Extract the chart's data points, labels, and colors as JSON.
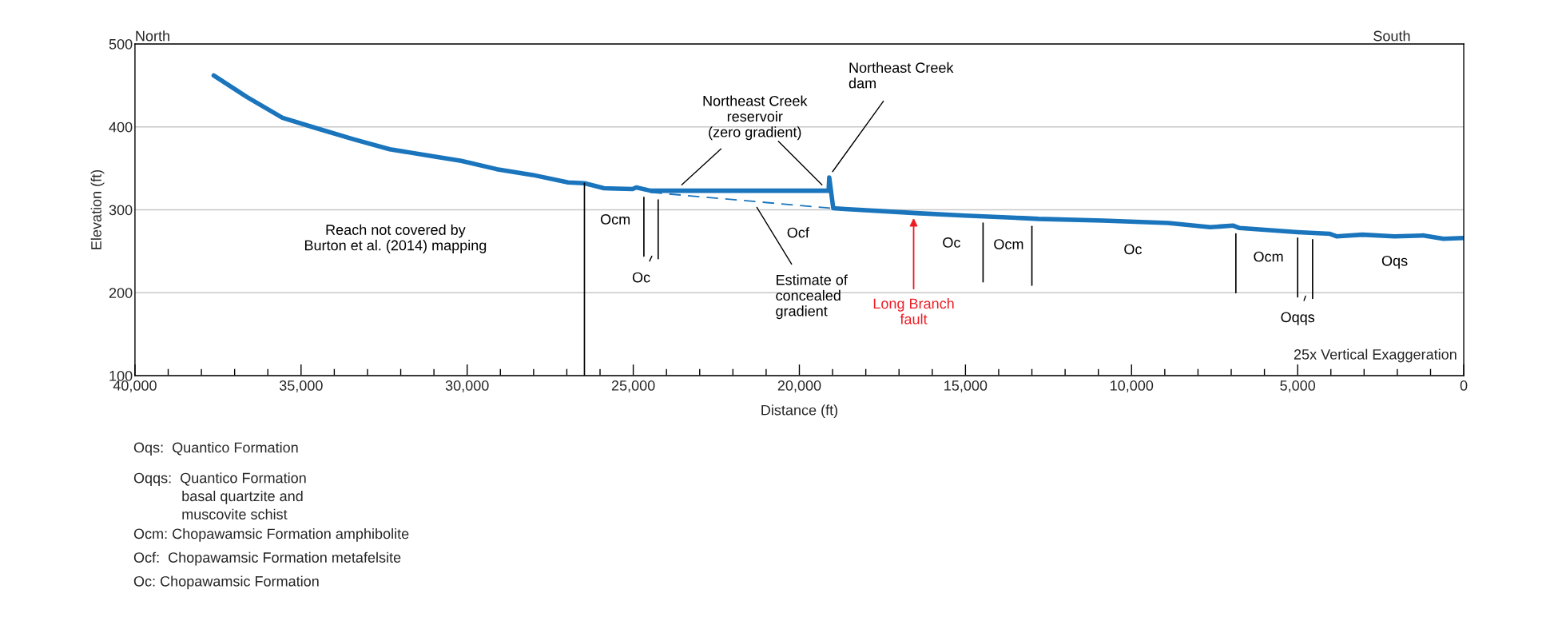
{
  "chart_data": {
    "type": "line",
    "xlabel": "Distance (ft)",
    "ylabel": "Elevation (ft)",
    "xlim": [
      40000,
      0
    ],
    "ylim": [
      100,
      500
    ],
    "xticks": [
      {
        "value": 40000,
        "label": "40,000"
      },
      {
        "value": 39000,
        "label": null
      },
      {
        "value": 38000,
        "label": null
      },
      {
        "value": 37000,
        "label": null
      },
      {
        "value": 36000,
        "label": null
      },
      {
        "value": 35000,
        "label": "35,000"
      },
      {
        "value": 34000,
        "label": null
      },
      {
        "value": 33000,
        "label": null
      },
      {
        "value": 32000,
        "label": null
      },
      {
        "value": 31000,
        "label": null
      },
      {
        "value": 30000,
        "label": "30,000"
      },
      {
        "value": 29000,
        "label": null
      },
      {
        "value": 28000,
        "label": null
      },
      {
        "value": 27000,
        "label": null
      },
      {
        "value": 26000,
        "label": null
      },
      {
        "value": 25000,
        "label": "25,000"
      },
      {
        "value": 24000,
        "label": null
      },
      {
        "value": 23000,
        "label": null
      },
      {
        "value": 22000,
        "label": null
      },
      {
        "value": 21000,
        "label": null
      },
      {
        "value": 20000,
        "label": "20,000"
      },
      {
        "value": 19000,
        "label": null
      },
      {
        "value": 18000,
        "label": null
      },
      {
        "value": 17000,
        "label": null
      },
      {
        "value": 16000,
        "label": null
      },
      {
        "value": 15000,
        "label": "15,000"
      },
      {
        "value": 14000,
        "label": null
      },
      {
        "value": 13000,
        "label": null
      },
      {
        "value": 12000,
        "label": null
      },
      {
        "value": 11000,
        "label": null
      },
      {
        "value": 10000,
        "label": "10,000"
      },
      {
        "value": 9000,
        "label": null
      },
      {
        "value": 8000,
        "label": null
      },
      {
        "value": 7000,
        "label": null
      },
      {
        "value": 6000,
        "label": null
      },
      {
        "value": 5000,
        "label": "5,000"
      },
      {
        "value": 4000,
        "label": null
      },
      {
        "value": 3000,
        "label": null
      },
      {
        "value": 2000,
        "label": null
      },
      {
        "value": 1000,
        "label": null
      },
      0
    ],
    "yticks": [
      100,
      200,
      300,
      400,
      500
    ],
    "grid": "y",
    "legend": false,
    "series": [
      {
        "color": "#1a75bc",
        "x": [
          37630,
          36630,
          35560,
          34590,
          33410,
          32330,
          31260,
          30180,
          29110,
          28030,
          26960,
          26470,
          25880,
          25020,
          24910,
          24480,
          19120,
          19100,
          18980,
          18640,
          16490,
          15010,
          13270,
          12800,
          10850,
          8900,
          7630,
          6950,
          6750,
          5000,
          4030,
          3830,
          3050,
          2080,
          1200,
          610,
          0
        ],
        "values": [
          462,
          436,
          411,
          399,
          385,
          373,
          366,
          359,
          349,
          342,
          333,
          332,
          326,
          325,
          327,
          323,
          323,
          339,
          302,
          301,
          296,
          293,
          290,
          289,
          287,
          284,
          279,
          281,
          278,
          273,
          271,
          268,
          270,
          268,
          269,
          265,
          266
        ]
      },
      {
        "color": "#1a75bc",
        "line_style": "dashed",
        "x": [
          24480,
          19070
        ],
        "values": [
          321,
          302
        ]
      },
      {
        "color": "#000000",
        "x": [
          26470,
          26470
        ],
        "values": [
          100,
          332
        ]
      },
      {
        "color": "#000000",
        "x": [
          24680,
          24680
        ],
        "values": [
          244,
          315
        ]
      },
      {
        "color": "#000000",
        "x": [
          24250,
          24250
        ],
        "values": [
          241,
          312
        ]
      },
      {
        "color": "#000000",
        "x": [
          14470,
          14470
        ],
        "values": [
          213,
          284
        ]
      },
      {
        "color": "#000000",
        "x": [
          13000,
          13000
        ],
        "values": [
          209,
          280
        ]
      },
      {
        "color": "#000000",
        "x": [
          6860,
          6860
        ],
        "values": [
          200,
          271
        ]
      },
      {
        "color": "#000000",
        "x": [
          5000,
          5000
        ],
        "values": [
          195,
          266
        ]
      },
      {
        "color": "#000000",
        "x": [
          4550,
          4550
        ],
        "values": [
          193,
          264
        ]
      }
    ],
    "annotations": [
      "Reach not covered by\nBurton et al. (2014) mapping",
      "Ocm",
      "Oc",
      "Ocf",
      "Estimate of\nconcealed\ngradient",
      "Northeast Creek\nreservoir\n(zero gradient)",
      "Northeast Creek\ndam",
      "Long Branch\nfault",
      "Oc",
      "Ocm",
      "Oc",
      "Ocm",
      "Oqqs",
      "Oqs",
      "North",
      "South",
      "25x Vertical Exaggeration",
      "Oqs:  Quantico Formation",
      "Oqqs:  Quantico Formation\n            basal quartzite and\n            muscovite schist",
      "Ocm: Chopawamsic Formation amphibolite",
      "Ocf:  Chopawamsic Formation metafelsite",
      "Oc: Chopawamsic Formation"
    ]
  }
}
